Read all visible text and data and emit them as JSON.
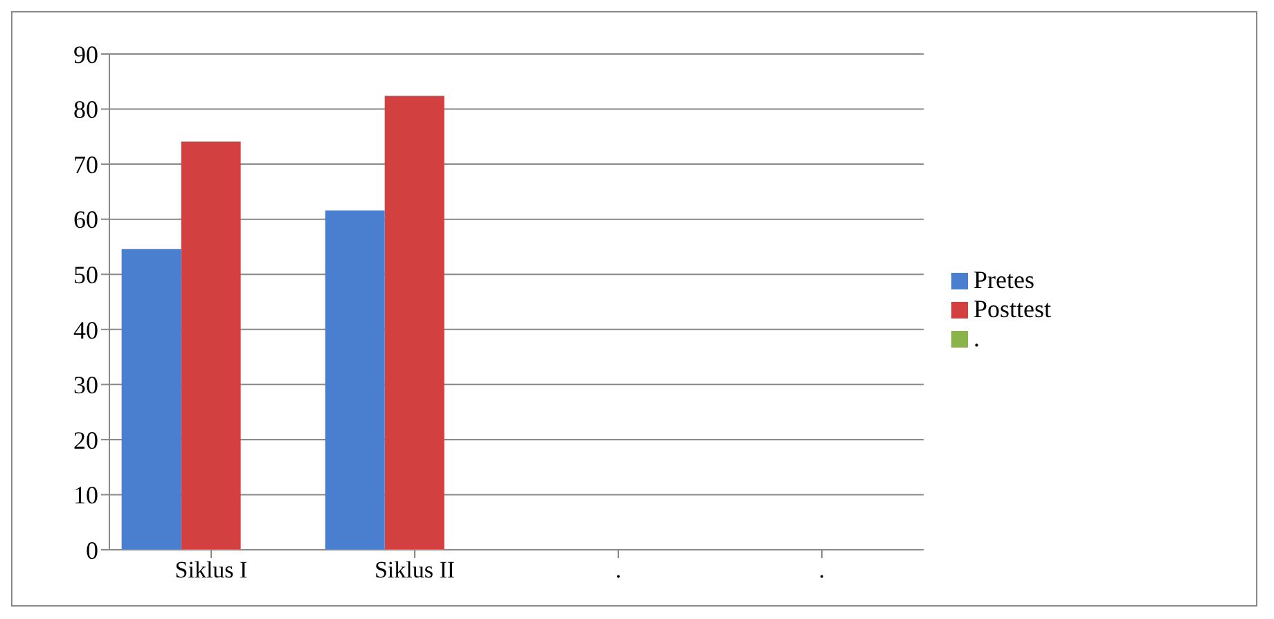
{
  "chart_data": {
    "type": "bar",
    "categories": [
      "Siklus I",
      "Siklus II",
      ".",
      "."
    ],
    "series": [
      {
        "name": "Pretes",
        "color": "#4a7fd0",
        "values": [
          54.6,
          61.6,
          null,
          null
        ]
      },
      {
        "name": "Posttest",
        "color": "#d24040",
        "values": [
          74.1,
          82.4,
          null,
          null
        ]
      },
      {
        "name": ".",
        "color": "#8ab34a",
        "values": [
          null,
          null,
          null,
          null
        ]
      }
    ],
    "ylim": [
      0,
      90
    ],
    "yticks": [
      0,
      10,
      20,
      30,
      40,
      50,
      60,
      70,
      80,
      90
    ],
    "grid": "y",
    "legend": "right"
  }
}
